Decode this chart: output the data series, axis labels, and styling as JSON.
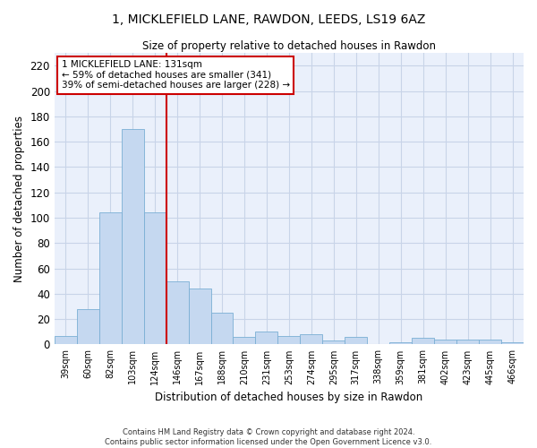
{
  "title": "1, MICKLEFIELD LANE, RAWDON, LEEDS, LS19 6AZ",
  "subtitle": "Size of property relative to detached houses in Rawdon",
  "xlabel": "Distribution of detached houses by size in Rawdon",
  "ylabel": "Number of detached properties",
  "categories": [
    "39sqm",
    "60sqm",
    "82sqm",
    "103sqm",
    "124sqm",
    "146sqm",
    "167sqm",
    "188sqm",
    "210sqm",
    "231sqm",
    "253sqm",
    "274sqm",
    "295sqm",
    "317sqm",
    "338sqm",
    "359sqm",
    "381sqm",
    "402sqm",
    "423sqm",
    "445sqm",
    "466sqm"
  ],
  "values": [
    7,
    28,
    104,
    170,
    104,
    50,
    44,
    25,
    6,
    10,
    7,
    8,
    3,
    6,
    0,
    2,
    5,
    4,
    4,
    4,
    2
  ],
  "bar_color": "#c5d8f0",
  "bar_edge_color": "#7aafd4",
  "vline_color": "#cc0000",
  "vline_x": 4.5,
  "annotation_text": "1 MICKLEFIELD LANE: 131sqm\n← 59% of detached houses are smaller (341)\n39% of semi-detached houses are larger (228) →",
  "annotation_box_color": "#ffffff",
  "annotation_box_edge": "#cc0000",
  "ylim": [
    0,
    230
  ],
  "yticks": [
    0,
    20,
    40,
    60,
    80,
    100,
    120,
    140,
    160,
    180,
    200,
    220
  ],
  "grid_color": "#c8d4e8",
  "background_color": "#eaf0fb",
  "footer": "Contains HM Land Registry data © Crown copyright and database right 2024.\nContains public sector information licensed under the Open Government Licence v3.0."
}
